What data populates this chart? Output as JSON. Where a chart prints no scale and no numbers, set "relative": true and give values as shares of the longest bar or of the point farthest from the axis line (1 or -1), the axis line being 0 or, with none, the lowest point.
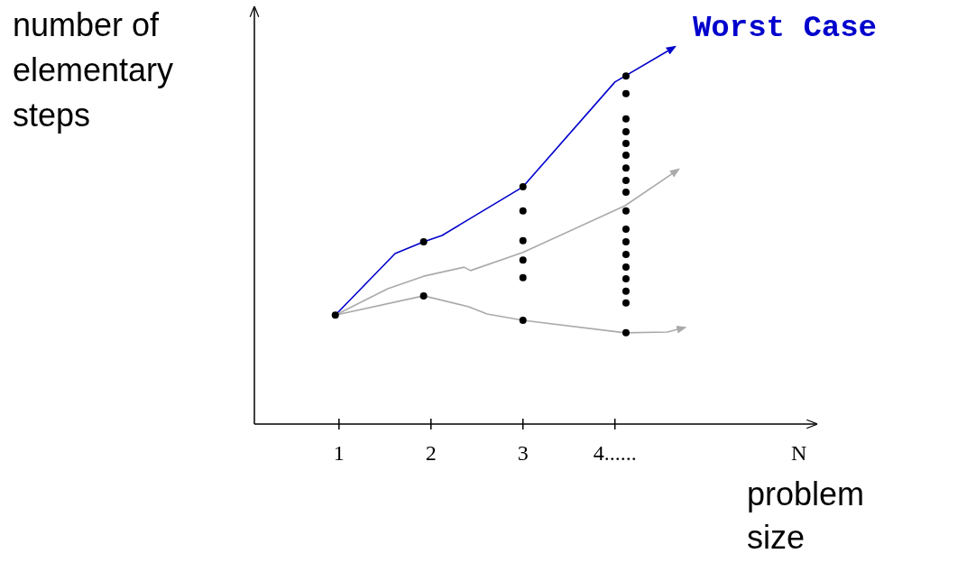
{
  "chart_data": {
    "type": "line",
    "relative": true,
    "xlabel": "problem size",
    "ylabel": "number of elementary steps",
    "xlim": [
      0.08,
      6.19
    ],
    "xticks": [
      1,
      2,
      3,
      {
        "value": 4,
        "label": "4......"
      },
      {
        "value": 6,
        "label": "N"
      }
    ],
    "tick_labels": "x",
    "grid": false,
    "marker": "none",
    "line_style": "solid",
    "series": [
      {
        "name": "Worst Case",
        "color": "#0000cc",
        "x": [
          0.96,
          1.61,
          1.92,
          2.12,
          3.0,
          4.0,
          4.65
        ],
        "values": [
          0.289,
          0.452,
          0.483,
          0.5,
          0.629,
          0.907,
          1.0
        ]
      },
      {
        "color": "#aaaaaa",
        "x": [
          0.96,
          1.53,
          1.92,
          2.36,
          2.43,
          3.0,
          4.11,
          4.69
        ],
        "values": [
          0.289,
          0.359,
          0.392,
          0.416,
          0.407,
          0.455,
          0.579,
          0.675
        ]
      },
      {
        "color": "#aaaaaa",
        "x": [
          0.96,
          1.92,
          2.41,
          2.61,
          3.0,
          4.11,
          4.57,
          4.76
        ],
        "values": [
          0.289,
          0.34,
          0.311,
          0.292,
          0.275,
          0.242,
          0.244,
          0.256
        ]
      },
      {
        "type": "scatter",
        "marker": "circle",
        "color": "#000000",
        "x": [
          0.96,
          1.92,
          1.92,
          3.0,
          3.0,
          3.0,
          3.0,
          3.0,
          3.0,
          4.12,
          4.12,
          4.12,
          4.12,
          4.12,
          4.12,
          4.12,
          4.12,
          4.12,
          4.12,
          4.12,
          4.12,
          4.12,
          4.12,
          4.12,
          4.12,
          4.12,
          4.12
        ],
        "values": [
          0.289,
          0.483,
          0.34,
          0.629,
          0.565,
          0.486,
          0.435,
          0.388,
          0.275,
          0.923,
          0.876,
          0.809,
          0.775,
          0.744,
          0.713,
          0.679,
          0.646,
          0.615,
          0.565,
          0.517,
          0.483,
          0.45,
          0.416,
          0.385,
          0.352,
          0.321,
          0.242
        ]
      }
    ]
  }
}
